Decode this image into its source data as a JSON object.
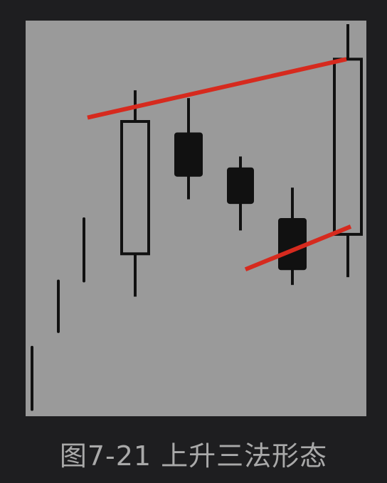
{
  "caption": "图7-21 上升三法形态",
  "chart_data": {
    "type": "candlestick",
    "title": "",
    "xlabel": "",
    "ylabel": "",
    "axes_visible": false,
    "grid": false,
    "legend": "none",
    "ylim": [
      0,
      100
    ],
    "candles": [
      {
        "kind": "tick",
        "low": 1,
        "high": 17
      },
      {
        "kind": "tick",
        "low": 21,
        "high": 34
      },
      {
        "kind": "tick",
        "low": 34,
        "high": 50
      },
      {
        "kind": "bullish",
        "open": 41,
        "close": 75,
        "low": 30,
        "high": 83
      },
      {
        "kind": "bearish",
        "open": 72,
        "close": 61,
        "low": 55,
        "high": 81
      },
      {
        "kind": "bearish",
        "open": 63,
        "close": 54,
        "low": 47,
        "high": 66
      },
      {
        "kind": "bearish",
        "open": 50,
        "close": 37,
        "low": 33,
        "high": 58
      },
      {
        "kind": "bullish",
        "open": 46,
        "close": 91,
        "low": 35,
        "high": 100
      }
    ],
    "trendlines": [
      {
        "name": "upper",
        "from": {
          "candle": 2,
          "value": 76
        },
        "to": {
          "candle": 7,
          "value": 91
        }
      },
      {
        "name": "lower",
        "from": {
          "candle": 5,
          "value": 37
        },
        "to": {
          "candle": 7,
          "value": 48
        }
      }
    ],
    "colors": {
      "background": "#9a9a9a",
      "ink": "#111111",
      "hollow_fill": "#9a9a9a",
      "trendline": "#d62a1e"
    }
  }
}
